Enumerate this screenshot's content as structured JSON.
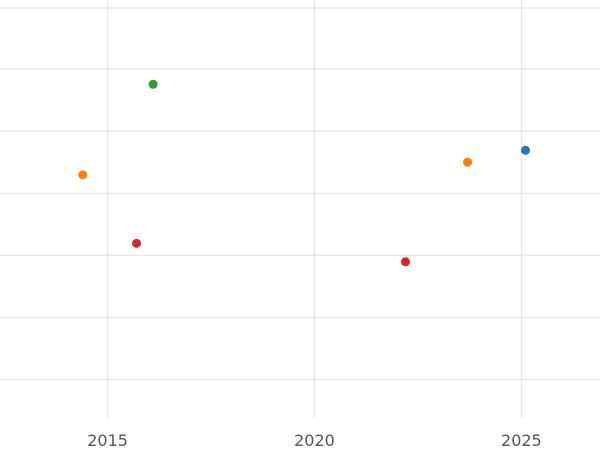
{
  "chart_data": {
    "type": "scatter",
    "title": "",
    "xlabel": "",
    "ylabel": "",
    "xlim": [
      2012.4,
      2026.9
    ],
    "ylim": [
      0,
      1
    ],
    "grid": true,
    "legend": "none",
    "x_ticks": [
      {
        "value": 2015,
        "label": "2015"
      },
      {
        "value": 2020,
        "label": "2020"
      },
      {
        "value": 2025,
        "label": "2025"
      }
    ],
    "y_grid_values": [
      0.094,
      0.245,
      0.397,
      0.548,
      0.7,
      0.851,
      1.0
    ],
    "points": [
      {
        "x": 2014.4,
        "y": 0.593,
        "color": "#ff7f0e"
      },
      {
        "x": 2015.7,
        "y": 0.426,
        "color": "#d62728"
      },
      {
        "x": 2016.1,
        "y": 0.814,
        "color": "#2ca02c"
      },
      {
        "x": 2022.2,
        "y": 0.381,
        "color": "#d62728"
      },
      {
        "x": 2023.7,
        "y": 0.624,
        "color": "#ff7f0e"
      },
      {
        "x": 2025.1,
        "y": 0.653,
        "color": "#1f77b4"
      }
    ]
  }
}
